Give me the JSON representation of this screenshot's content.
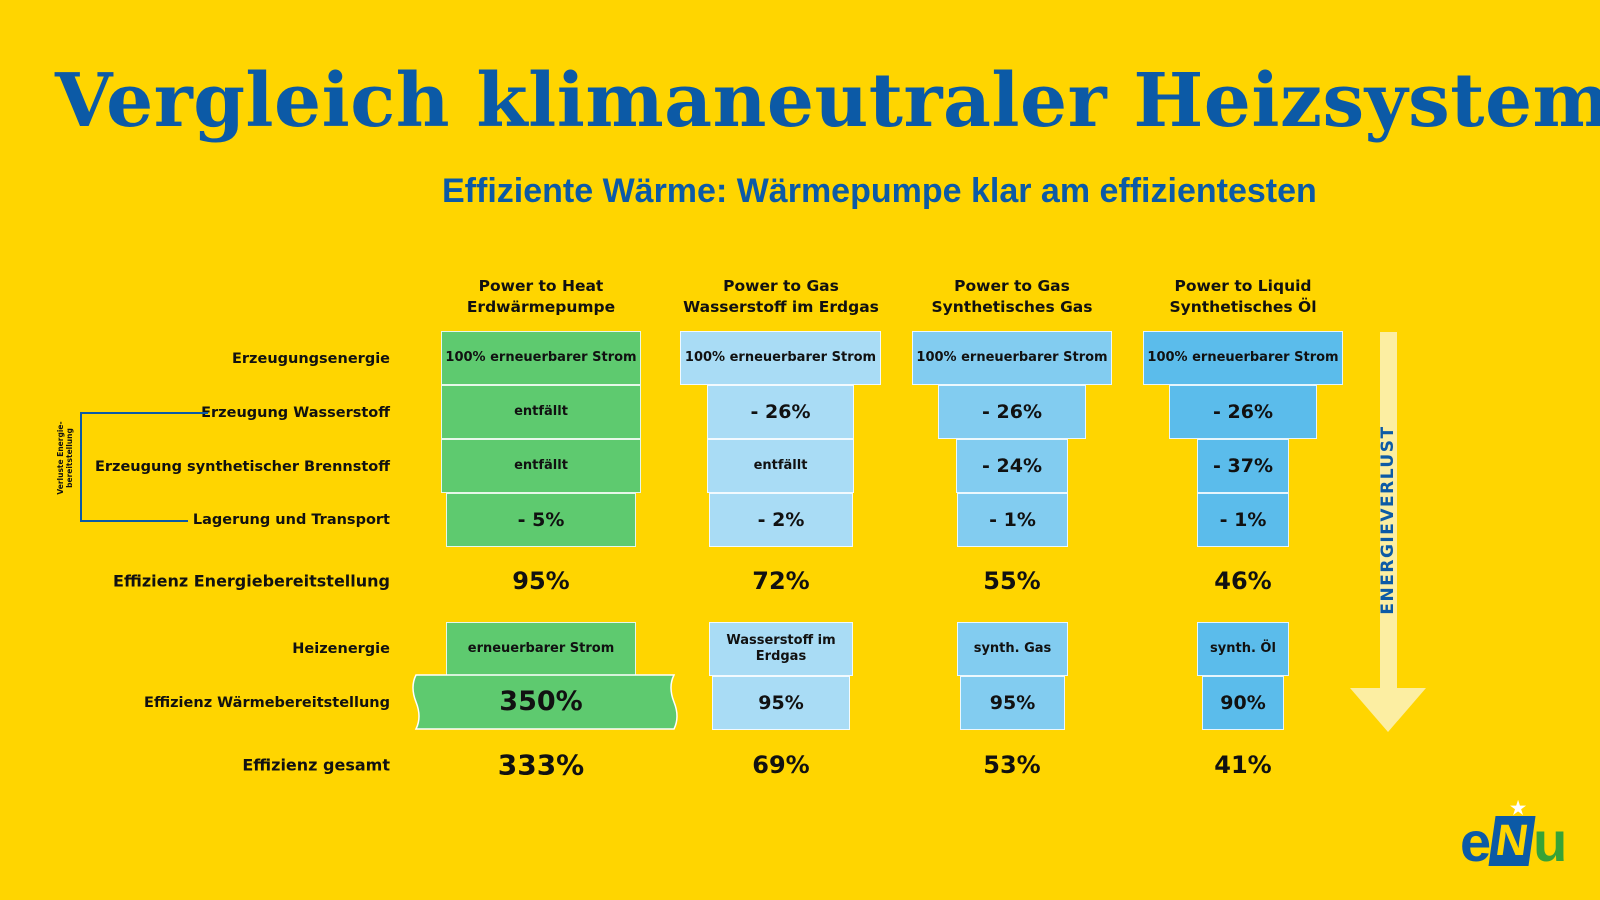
{
  "title": "Vergleich klimaneutraler Heizsysteme",
  "subtitle": "Effiziente Wärme: Wärmepumpe klar am effizientesten",
  "columns": [
    {
      "line1": "Power to Heat",
      "line2": "Erdwärmepumpe"
    },
    {
      "line1": "Power to Gas",
      "line2": "Wasserstoff im Erdgas"
    },
    {
      "line1": "Power to Gas",
      "line2": "Synthetisches Gas"
    },
    {
      "line1": "Power to Liquid",
      "line2": "Synthetisches Öl"
    }
  ],
  "rows": {
    "erzeugungsenergie": "Erzeugungsenergie",
    "wasserstoff": "Erzeugung Wasserstoff",
    "brennstoff": "Erzeugung synthetischer Brennstoff",
    "transport": "Lagerung und Transport",
    "eff_bereitstellung": "Effizienz Energiebereitstellung",
    "heizenergie": "Heizenergie",
    "eff_waerme": "Effizienz Wärmebereitstellung",
    "eff_gesamt": "Effizienz gesamt"
  },
  "bracket_label": {
    "line1": "Verluste Energie-",
    "line2": "bereitstellung"
  },
  "cells": {
    "erzeugungsenergie": [
      "100% erneuerbarer Strom",
      "100% erneuerbarer Strom",
      "100% erneuerbarer Strom",
      "100% erneuerbarer Strom"
    ],
    "wasserstoff": [
      "entfällt",
      "- 26%",
      "- 26%",
      "- 26%"
    ],
    "brennstoff": [
      "entfällt",
      "entfällt",
      "- 24%",
      "- 37%"
    ],
    "transport": [
      "- 5%",
      "- 2%",
      "- 1%",
      "- 1%"
    ],
    "eff_bereitstellung": [
      "95%",
      "72%",
      "55%",
      "46%"
    ],
    "heizenergie": [
      "erneuerbarer Strom",
      "Wasserstoff im Erdgas",
      "synth. Gas",
      "synth. Öl"
    ],
    "eff_waerme": [
      "350%",
      "95%",
      "95%",
      "90%"
    ],
    "eff_gesamt": [
      "333%",
      "69%",
      "53%",
      "41%"
    ]
  },
  "arrow_label": "ENERGIEVERLUST",
  "logo": {
    "e": "e",
    "n": "N",
    "u": "u"
  },
  "colors": {
    "background": "#FFD500",
    "title": "#0C5AA6",
    "col1": "#5ECA6F",
    "col2": "#A9DCF5",
    "col3": "#82CCF0",
    "col4": "#5BBCEB",
    "arrow": "#FCEEA2",
    "logo_green": "#37A336"
  }
}
